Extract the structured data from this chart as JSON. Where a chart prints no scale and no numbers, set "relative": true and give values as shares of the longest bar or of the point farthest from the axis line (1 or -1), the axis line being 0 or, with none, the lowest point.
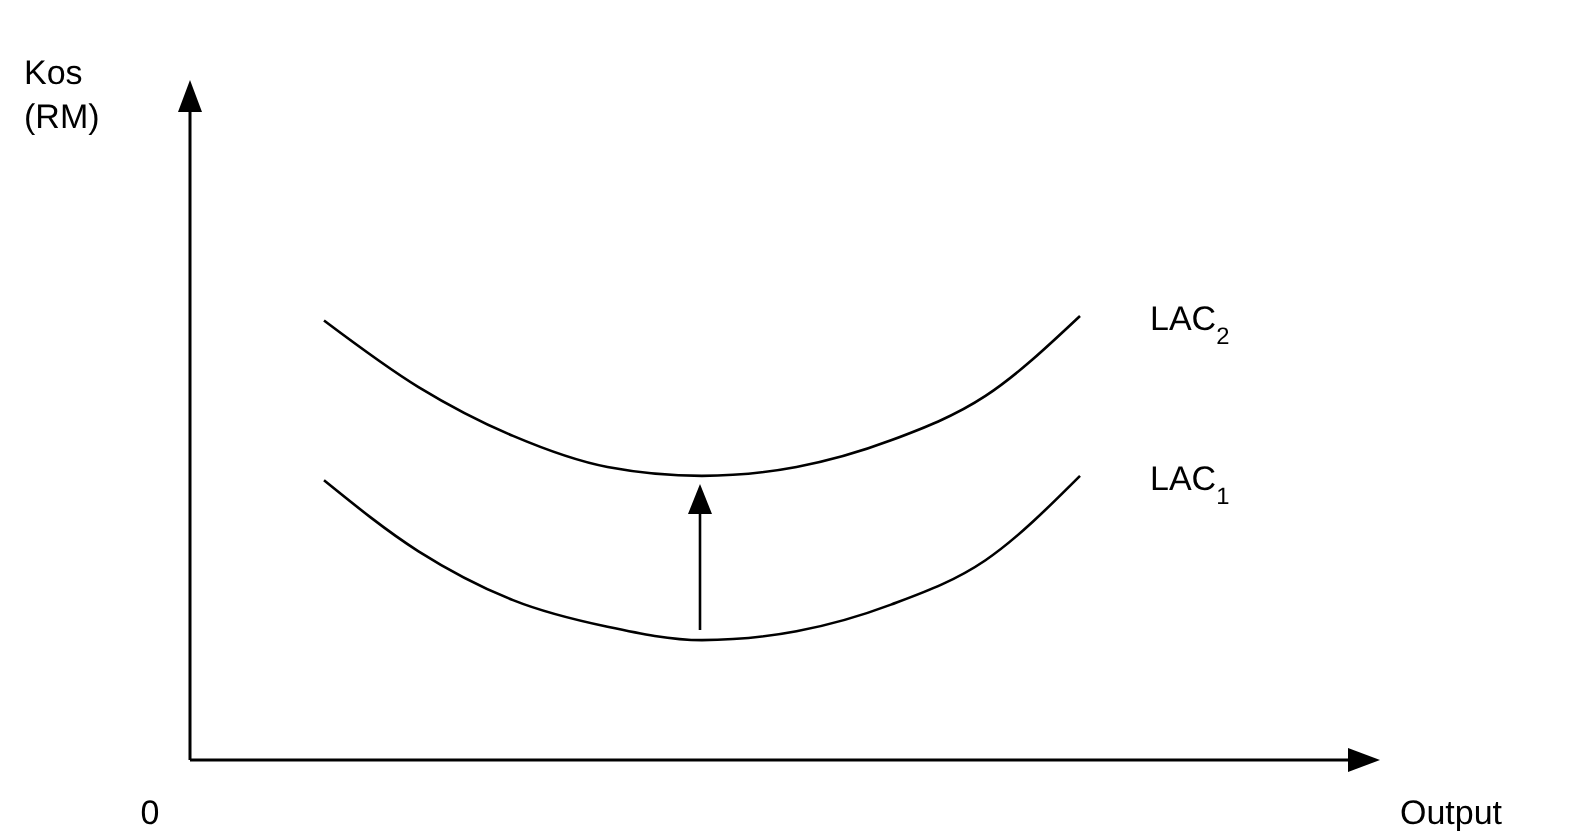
{
  "chart_data": {
    "type": "line",
    "relative": true,
    "annotations": [
      "Kos (RM)",
      "Output",
      "0"
    ],
    "categories": [
      null,
      null,
      null,
      null,
      null,
      null,
      null,
      null,
      null
    ],
    "marker": "none",
    "line_style": "solid",
    "series": [
      {
        "name": "LAC$_{2}$",
        "color": "#000000",
        "values": [
          0.99,
          0.84,
          0.73,
          0.66,
          0.64,
          0.66,
          0.72,
          0.82,
          1
        ]
      },
      {
        "name": "LAC$_{1}$",
        "color": "#000000",
        "values": [
          0.63,
          0.47,
          0.36,
          0.3,
          0.27,
          0.29,
          0.35,
          0.45,
          0.64
        ]
      }
    ]
  }
}
